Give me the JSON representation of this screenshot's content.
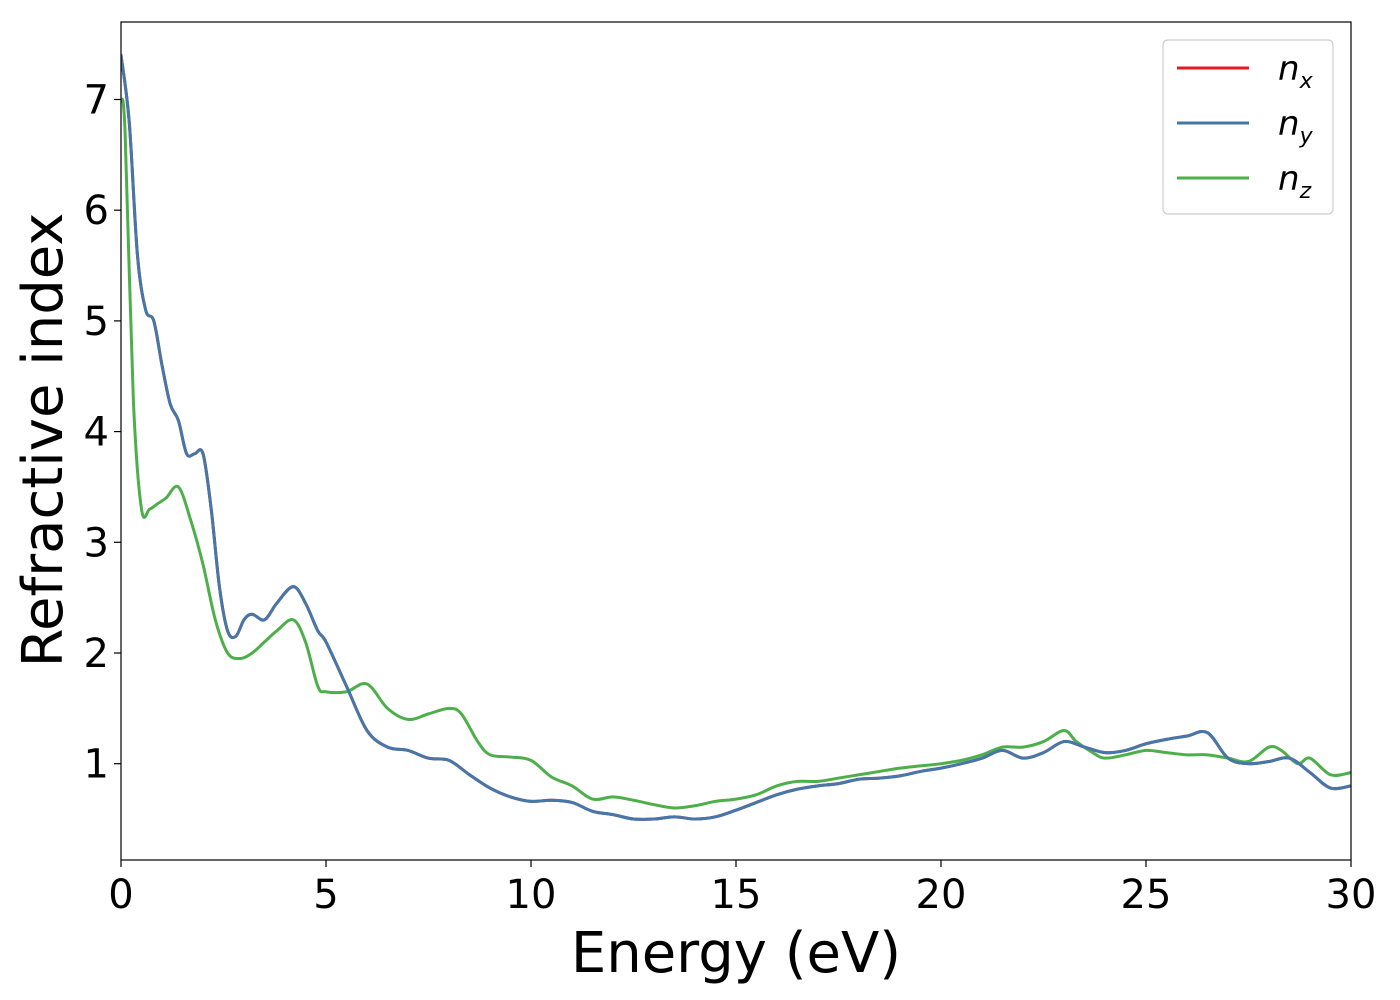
{
  "chart_data": {
    "type": "line",
    "xlabel": "Energy (eV)",
    "ylabel": "Refractive index",
    "xlim": [
      0,
      30
    ],
    "ylim": [
      0.13,
      7.7
    ],
    "xticks": [
      0,
      5,
      10,
      15,
      20,
      25,
      30
    ],
    "xtick_labels": [
      "0",
      "5",
      "10",
      "15",
      "20",
      "25",
      "30"
    ],
    "yticks": [
      1,
      2,
      3,
      4,
      5,
      6,
      7
    ],
    "ytick_labels": [
      "1",
      "2",
      "3",
      "4",
      "5",
      "6",
      "7"
    ],
    "grid": false,
    "legend_position": "top-right",
    "series": [
      {
        "name": "n_x",
        "legend_base": "n",
        "legend_sub": "x",
        "color": "#e41a1c",
        "x": [
          0,
          0.2,
          0.4,
          0.6,
          0.8,
          1.0,
          1.2,
          1.4,
          1.6,
          1.8,
          2.0,
          2.2,
          2.4,
          2.6,
          2.8,
          3.0,
          3.2,
          3.5,
          3.8,
          4.2,
          4.5,
          4.8,
          5.0,
          5.5,
          6.0,
          6.5,
          7.0,
          7.5,
          8.0,
          8.5,
          9.0,
          9.5,
          10.0,
          10.5,
          11.0,
          11.5,
          12.0,
          12.5,
          13.0,
          13.5,
          14.0,
          14.5,
          15.0,
          15.5,
          16.0,
          16.5,
          17.0,
          17.5,
          18.0,
          18.5,
          19.0,
          19.5,
          20.0,
          20.5,
          21.0,
          21.5,
          22.0,
          22.5,
          23.0,
          23.5,
          24.0,
          24.5,
          25.0,
          25.5,
          26.0,
          26.5,
          27.0,
          27.5,
          28.0,
          28.5,
          29.0,
          29.5,
          30.0
        ],
        "y": [
          7.4,
          6.8,
          5.6,
          5.1,
          5.0,
          4.6,
          4.25,
          4.1,
          3.8,
          3.8,
          3.8,
          3.3,
          2.6,
          2.2,
          2.15,
          2.3,
          2.35,
          2.3,
          2.45,
          2.6,
          2.45,
          2.2,
          2.1,
          1.7,
          1.3,
          1.15,
          1.12,
          1.05,
          1.03,
          0.9,
          0.78,
          0.7,
          0.66,
          0.67,
          0.65,
          0.57,
          0.54,
          0.5,
          0.5,
          0.52,
          0.5,
          0.52,
          0.58,
          0.65,
          0.72,
          0.77,
          0.8,
          0.82,
          0.86,
          0.87,
          0.89,
          0.93,
          0.96,
          1.0,
          1.05,
          1.12,
          1.05,
          1.1,
          1.2,
          1.15,
          1.1,
          1.12,
          1.18,
          1.22,
          1.25,
          1.28,
          1.05,
          1.0,
          1.02,
          1.05,
          0.92,
          0.78,
          0.8
        ]
      },
      {
        "name": "n_y",
        "legend_base": "n",
        "legend_sub": "y",
        "color": "#4477aa",
        "x": [
          0,
          0.2,
          0.4,
          0.6,
          0.8,
          1.0,
          1.2,
          1.4,
          1.6,
          1.8,
          2.0,
          2.2,
          2.4,
          2.6,
          2.8,
          3.0,
          3.2,
          3.5,
          3.8,
          4.2,
          4.5,
          4.8,
          5.0,
          5.5,
          6.0,
          6.5,
          7.0,
          7.5,
          8.0,
          8.5,
          9.0,
          9.5,
          10.0,
          10.5,
          11.0,
          11.5,
          12.0,
          12.5,
          13.0,
          13.5,
          14.0,
          14.5,
          15.0,
          15.5,
          16.0,
          16.5,
          17.0,
          17.5,
          18.0,
          18.5,
          19.0,
          19.5,
          20.0,
          20.5,
          21.0,
          21.5,
          22.0,
          22.5,
          23.0,
          23.5,
          24.0,
          24.5,
          25.0,
          25.5,
          26.0,
          26.5,
          27.0,
          27.5,
          28.0,
          28.5,
          29.0,
          29.5,
          30.0
        ],
        "y": [
          7.4,
          6.8,
          5.6,
          5.1,
          5.0,
          4.6,
          4.25,
          4.1,
          3.8,
          3.8,
          3.8,
          3.3,
          2.6,
          2.2,
          2.15,
          2.3,
          2.35,
          2.3,
          2.45,
          2.6,
          2.45,
          2.2,
          2.1,
          1.7,
          1.3,
          1.15,
          1.12,
          1.05,
          1.03,
          0.9,
          0.78,
          0.7,
          0.66,
          0.67,
          0.65,
          0.57,
          0.54,
          0.5,
          0.5,
          0.52,
          0.5,
          0.52,
          0.58,
          0.65,
          0.72,
          0.77,
          0.8,
          0.82,
          0.86,
          0.87,
          0.89,
          0.93,
          0.96,
          1.0,
          1.05,
          1.12,
          1.05,
          1.1,
          1.2,
          1.15,
          1.1,
          1.12,
          1.18,
          1.22,
          1.25,
          1.28,
          1.05,
          1.0,
          1.02,
          1.05,
          0.92,
          0.78,
          0.8
        ]
      },
      {
        "name": "n_z",
        "legend_base": "n",
        "legend_sub": "z",
        "color": "#4daf4a",
        "x": [
          0,
          0.1,
          0.3,
          0.5,
          0.7,
          0.9,
          1.1,
          1.4,
          1.7,
          2.0,
          2.3,
          2.6,
          2.9,
          3.2,
          3.5,
          3.8,
          4.2,
          4.5,
          4.8,
          5.0,
          5.5,
          6.0,
          6.5,
          7.0,
          7.5,
          8.0,
          8.3,
          8.7,
          9.0,
          9.5,
          10.0,
          10.5,
          11.0,
          11.5,
          12.0,
          12.5,
          13.0,
          13.5,
          14.0,
          14.5,
          15.0,
          15.5,
          16.0,
          16.5,
          17.0,
          17.5,
          18.0,
          18.5,
          19.0,
          19.5,
          20.0,
          20.5,
          21.0,
          21.5,
          22.0,
          22.5,
          23.0,
          23.3,
          23.7,
          24.0,
          24.5,
          25.0,
          25.5,
          26.0,
          26.5,
          27.0,
          27.5,
          28.0,
          28.3,
          28.7,
          29.0,
          29.5,
          30.0
        ],
        "y": [
          7.0,
          6.7,
          4.3,
          3.3,
          3.3,
          3.35,
          3.4,
          3.5,
          3.2,
          2.8,
          2.3,
          2.0,
          1.95,
          2.0,
          2.1,
          2.2,
          2.3,
          2.1,
          1.7,
          1.65,
          1.65,
          1.72,
          1.5,
          1.4,
          1.45,
          1.5,
          1.45,
          1.2,
          1.08,
          1.06,
          1.03,
          0.88,
          0.8,
          0.68,
          0.7,
          0.67,
          0.63,
          0.6,
          0.62,
          0.66,
          0.68,
          0.72,
          0.8,
          0.84,
          0.84,
          0.87,
          0.9,
          0.93,
          0.96,
          0.98,
          1.0,
          1.03,
          1.08,
          1.15,
          1.15,
          1.2,
          1.3,
          1.2,
          1.1,
          1.05,
          1.08,
          1.12,
          1.1,
          1.08,
          1.08,
          1.05,
          1.02,
          1.15,
          1.12,
          1.0,
          1.05,
          0.9,
          0.92
        ]
      }
    ]
  }
}
